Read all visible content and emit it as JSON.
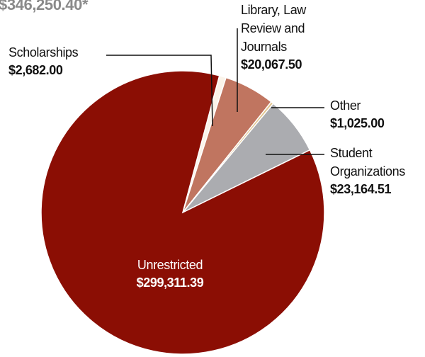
{
  "chart_data": {
    "type": "pie",
    "title": "$346,250.40*",
    "categories": [
      "Scholarships",
      "Library, Law Review and Journals",
      "Other",
      "Student Organizations",
      "Unrestricted"
    ],
    "values": [
      2682.0,
      20067.5,
      1025.0,
      23164.51,
      299311.39
    ],
    "value_labels": [
      "$2,682.00",
      "$20,067.50",
      "$1,025.00",
      "$23,164.51",
      "$299,311.39"
    ],
    "colors": [
      "#fbf4ea",
      "#c07560",
      "#e2c58f",
      "#abacb0",
      "#8b0e04"
    ]
  }
}
